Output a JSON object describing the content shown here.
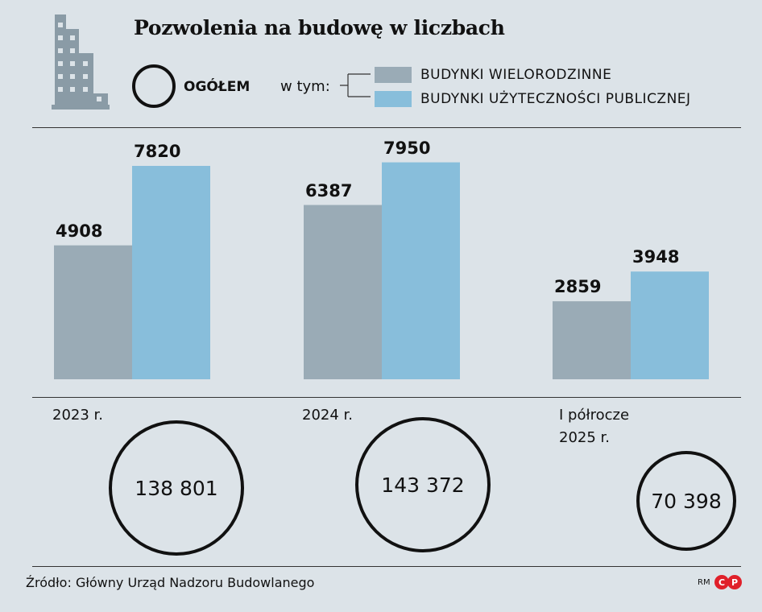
{
  "title": "Pozwolenia na budowę w liczbach",
  "legend": {
    "total_label": "OGÓŁEM",
    "subset_prefix": "w tym:",
    "items": [
      {
        "label": "BUDYNKI WIELORODZINNE",
        "color": "#9aabb6"
      },
      {
        "label": "BUDYNKI UŻYTECZNOŚCI PUBLICZNEJ",
        "color": "#88bedb"
      }
    ]
  },
  "chart_data": {
    "type": "bar",
    "title": "Pozwolenia na budowę w liczbach",
    "categories": [
      "2023 r.",
      "2024 r.",
      "I półrocze\n2025 r."
    ],
    "series": [
      {
        "name": "BUDYNKI WIELORODZINNE",
        "values": [
          4908,
          6387,
          2859
        ],
        "color": "#9aabb6"
      },
      {
        "name": "BUDYNKI UŻYTECZNOŚCI PUBLICZNEJ",
        "values": [
          7820,
          7950,
          3948
        ],
        "color": "#88bedb"
      }
    ],
    "value_labels": [
      [
        "4908",
        "7820"
      ],
      [
        "6387",
        "7950"
      ],
      [
        "2859",
        "3948"
      ]
    ],
    "totals": [
      138801,
      143372,
      70398
    ],
    "total_labels": [
      "138 801",
      "143 372",
      "70 398"
    ],
    "ylim": [
      0,
      8000
    ],
    "grid": false,
    "legend_position": "top"
  },
  "source": "Źródło: Główny Urząd Nadzoru Budowlanego",
  "credit": "RM"
}
